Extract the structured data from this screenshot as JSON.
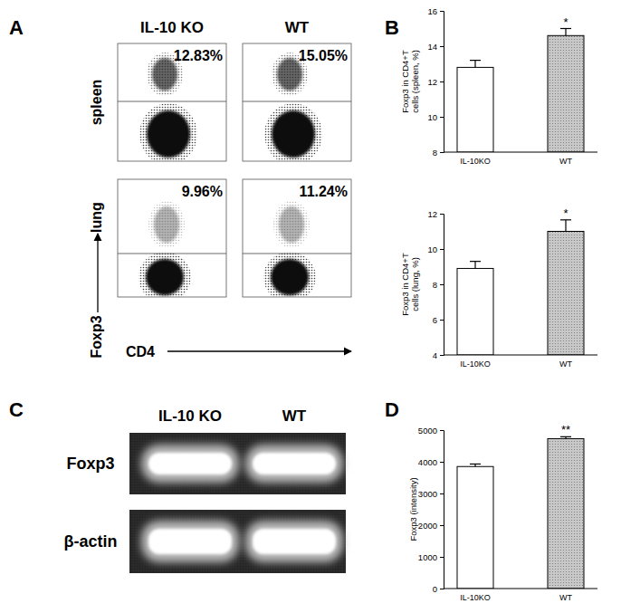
{
  "chart_data": [
    {
      "panel": "A",
      "type": "flow_cytometry",
      "columns": [
        "IL-10 KO",
        "WT"
      ],
      "rows": [
        "spleen",
        "lung"
      ],
      "x_label": "CD4",
      "y_label": "Foxp3",
      "values": [
        [
          12.83,
          15.05
        ],
        [
          9.96,
          11.24
        ]
      ],
      "value_labels": [
        [
          "12.83%",
          "15.05%"
        ],
        [
          "9.96%",
          "11.24%"
        ]
      ],
      "tick_labels": false
    },
    {
      "panel": "B",
      "type": "bar",
      "categories": [
        "IL-10KO",
        "WT"
      ],
      "values": [
        12.8,
        14.6
      ],
      "errors": [
        0.4,
        0.4
      ],
      "significance": [
        null,
        "*"
      ],
      "colors": [
        "#ffffff",
        "#c8c8c8"
      ],
      "y_label": [
        "Foxp3 in CD4+T",
        "cells (spleen, %)"
      ],
      "ylim": [
        8,
        16
      ],
      "yticks": [
        8,
        10,
        12,
        14,
        16
      ]
    },
    {
      "type": "bar",
      "categories": [
        "IL-10KO",
        "WT"
      ],
      "values": [
        8.9,
        11.0
      ],
      "errors": [
        0.4,
        0.65
      ],
      "significance": [
        null,
        "*"
      ],
      "colors": [
        "#ffffff",
        "#c8c8c8"
      ],
      "y_label": [
        "Foxp3 in CD4+T",
        "cells (lung, %)"
      ],
      "ylim": [
        4,
        12
      ],
      "yticks": [
        4,
        6,
        8,
        10,
        12
      ]
    },
    {
      "panel": "C",
      "type": "gel",
      "lanes": [
        "IL-10 KO",
        "WT"
      ],
      "bands": [
        "Foxp3",
        "β-actin"
      ]
    },
    {
      "panel": "D",
      "type": "bar",
      "categories": [
        "IL-10KO",
        "WT"
      ],
      "values": [
        3850,
        4730
      ],
      "errors": [
        80,
        60
      ],
      "significance": [
        null,
        "**"
      ],
      "colors": [
        "#ffffff",
        "#c8c8c8"
      ],
      "y_label": [
        "Foxp3 (intensity)"
      ],
      "ylim": [
        0,
        5000
      ],
      "yticks": [
        0,
        1000,
        2000,
        3000,
        4000,
        5000
      ]
    }
  ]
}
